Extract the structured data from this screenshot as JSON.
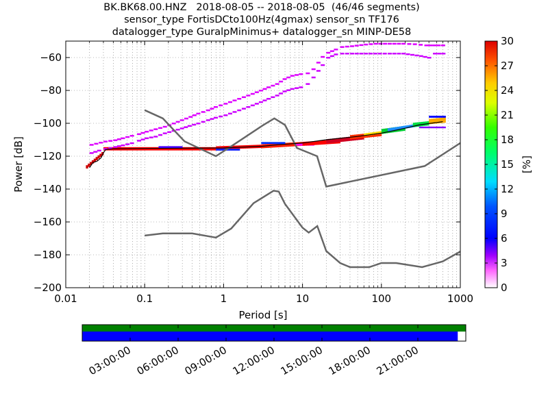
{
  "title": {
    "line1": "BK.BK68.00.HNZ   2018-08-05 -- 2018-08-05  (46/46 segments)",
    "line2": "sensor_type FortisDCto100Hz(4gmax) sensor_sn TF176",
    "line3": "datalogger_type GuralpMinimus+ datalogger_sn MINP-DE58"
  },
  "chart_data": {
    "type": "heatmap",
    "xlabel": "Period [s]",
    "ylabel": "Power [dB]",
    "x_scale": "log",
    "xlim": [
      0.01,
      1000
    ],
    "ylim": [
      -200,
      -50
    ],
    "x_ticks": [
      {
        "value": 0.01,
        "label": "0.01"
      },
      {
        "value": 0.1,
        "label": "0.1"
      },
      {
        "value": 1,
        "label": "1"
      },
      {
        "value": 10,
        "label": "10"
      },
      {
        "value": 100,
        "label": "100"
      },
      {
        "value": 1000,
        "label": "1000"
      }
    ],
    "y_ticks": [
      {
        "value": -60,
        "label": "−60"
      },
      {
        "value": -80,
        "label": "−80"
      },
      {
        "value": -100,
        "label": "−100"
      },
      {
        "value": -120,
        "label": "−120"
      },
      {
        "value": -140,
        "label": "−140"
      },
      {
        "value": -160,
        "label": "−160"
      },
      {
        "value": -180,
        "label": "−180"
      },
      {
        "value": -200,
        "label": "−200"
      }
    ],
    "grid": true,
    "colorbar": {
      "label": "[%]",
      "range": [
        0,
        30
      ],
      "ticks": [
        {
          "value": 0,
          "label": "0"
        },
        {
          "value": 3,
          "label": "3"
        },
        {
          "value": 6,
          "label": "6"
        },
        {
          "value": 9,
          "label": "9"
        },
        {
          "value": 12,
          "label": "12"
        },
        {
          "value": 15,
          "label": "15"
        },
        {
          "value": 18,
          "label": "18"
        },
        {
          "value": 21,
          "label": "21"
        },
        {
          "value": 24,
          "label": "24"
        },
        {
          "value": 27,
          "label": "27"
        },
        {
          "value": 30,
          "label": "30"
        }
      ]
    },
    "noise_models": [
      {
        "points": [
          [
            0.1,
            -92
          ],
          [
            0.17,
            -97
          ],
          [
            0.32,
            -111
          ],
          [
            0.8,
            -120
          ],
          [
            1.25,
            -114
          ],
          [
            3.2,
            -101
          ],
          [
            4.4,
            -97
          ],
          [
            6.0,
            -101
          ],
          [
            8.5,
            -115
          ],
          [
            15.3,
            -120
          ],
          [
            20,
            -138.5
          ],
          [
            354,
            -126
          ],
          [
            1000,
            -112
          ]
        ]
      },
      {
        "points": [
          [
            0.1,
            -168.3
          ],
          [
            0.17,
            -167
          ],
          [
            0.4,
            -167
          ],
          [
            0.8,
            -169.5
          ],
          [
            1.25,
            -164
          ],
          [
            2.4,
            -148.6
          ],
          [
            4.3,
            -141
          ],
          [
            5.0,
            -141.5
          ],
          [
            6.0,
            -149
          ],
          [
            10,
            -163.5
          ],
          [
            12,
            -166.5
          ],
          [
            15.4,
            -162.5
          ],
          [
            20,
            -177.7
          ],
          [
            30,
            -185
          ],
          [
            40,
            -187.5
          ],
          [
            70,
            -187.5
          ],
          [
            100,
            -185
          ],
          [
            154,
            -185
          ],
          [
            328,
            -187.5
          ],
          [
            600,
            -184
          ],
          [
            1000,
            -178
          ]
        ]
      }
    ],
    "mean_curve": [
      [
        0.02,
        -127
      ],
      [
        0.022,
        -124
      ],
      [
        0.025,
        -123
      ],
      [
        0.028,
        -121
      ],
      [
        0.03,
        -118
      ],
      [
        0.032,
        -116
      ],
      [
        0.04,
        -115.5
      ],
      [
        0.1,
        -115.3
      ],
      [
        1,
        -115
      ],
      [
        3,
        -114
      ],
      [
        5,
        -113
      ],
      [
        10,
        -112
      ],
      [
        20,
        -110
      ],
      [
        50,
        -108
      ],
      [
        100,
        -106
      ],
      [
        200,
        -103
      ],
      [
        300,
        -101
      ],
      [
        600,
        -99
      ]
    ],
    "pdf_bands": [
      {
        "from": 0.018,
        "to": 0.03,
        "center": [
          -127,
          -118
        ],
        "half": 1,
        "color": "#cc0000"
      },
      {
        "from": 0.03,
        "to": 0.8,
        "center": [
          -115.5,
          -115.5
        ],
        "half": 1,
        "color": "#ff0000"
      },
      {
        "from": 0.15,
        "to": 0.3,
        "center": [
          -114.5,
          -114.5
        ],
        "half": 0.6,
        "color": "#4b00ff"
      },
      {
        "from": 0.8,
        "to": 3,
        "center": [
          -115,
          -114
        ],
        "half": 1,
        "color": "#ff0000"
      },
      {
        "from": 0.8,
        "to": 1.6,
        "center": [
          -116,
          -116
        ],
        "half": 0.6,
        "color": "#1020ff"
      },
      {
        "from": 3,
        "to": 10,
        "center": [
          -114,
          -112.5
        ],
        "half": 1.2,
        "color": "#ff2000"
      },
      {
        "from": 3,
        "to": 6,
        "center": [
          -112,
          -112
        ],
        "half": 0.6,
        "color": "#0030ff"
      },
      {
        "from": 8,
        "to": 14,
        "center": [
          -113,
          -113
        ],
        "half": 0.6,
        "color": "#ff00ff"
      },
      {
        "from": 10,
        "to": 30,
        "center": [
          -112.5,
          -111
        ],
        "half": 1.2,
        "color": "#ff0000"
      },
      {
        "from": 20,
        "to": 60,
        "center": [
          -111,
          -108.5
        ],
        "half": 1.3,
        "color": "#d00020"
      },
      {
        "from": 40,
        "to": 100,
        "center": [
          -108.5,
          -106.5
        ],
        "half": 1.3,
        "color": "#ff3000"
      },
      {
        "from": 60,
        "to": 120,
        "center": [
          -107,
          -105
        ],
        "half": 0.8,
        "color": "#ffdd00"
      },
      {
        "from": 100,
        "to": 200,
        "center": [
          -105,
          -103
        ],
        "half": 1.5,
        "color": "#00cc33"
      },
      {
        "from": 120,
        "to": 300,
        "center": [
          -104,
          -101
        ],
        "half": 0.9,
        "color": "#1e90ff"
      },
      {
        "from": 250,
        "to": 400,
        "center": [
          -101,
          -100
        ],
        "half": 1.3,
        "color": "#00dd44"
      },
      {
        "from": 400,
        "to": 650,
        "center": [
          -99,
          -98
        ],
        "half": 1.6,
        "color": "#ffaa00"
      },
      {
        "from": 300,
        "to": 650,
        "center": [
          -102.5,
          -102.5
        ],
        "half": 0.5,
        "color": "#8000ff"
      },
      {
        "from": 400,
        "to": 650,
        "center": [
          -96,
          -96
        ],
        "half": 0.6,
        "color": "#0000ff"
      }
    ],
    "pdf_scatter_upper": [
      [
        0.02,
        -118
      ],
      [
        0.025,
        -116.5
      ],
      [
        0.03,
        -115.5
      ],
      [
        0.04,
        -114.3
      ],
      [
        0.05,
        -113.3
      ],
      [
        0.065,
        -112
      ],
      [
        0.08,
        -110.5
      ],
      [
        0.1,
        -109
      ],
      [
        0.13,
        -108
      ],
      [
        0.17,
        -106
      ],
      [
        0.22,
        -104.5
      ],
      [
        0.28,
        -103
      ],
      [
        0.35,
        -101.5
      ],
      [
        0.45,
        -100
      ],
      [
        0.6,
        -98
      ],
      [
        0.75,
        -96.5
      ],
      [
        1.0,
        -95
      ],
      [
        1.3,
        -93
      ],
      [
        1.7,
        -91
      ],
      [
        2.2,
        -89
      ],
      [
        2.8,
        -87
      ],
      [
        3.5,
        -85
      ],
      [
        4.5,
        -83
      ],
      [
        5.6,
        -80.5
      ],
      [
        7,
        -79
      ],
      [
        9,
        -78
      ],
      [
        11,
        -76
      ],
      [
        13,
        -72
      ],
      [
        15,
        -68
      ],
      [
        17,
        -64.5
      ],
      [
        20,
        -60
      ],
      [
        25,
        -58
      ],
      [
        30,
        -57.5
      ],
      [
        40,
        -57.5
      ],
      [
        60,
        -57.5
      ],
      [
        90,
        -57.5
      ],
      [
        120,
        -57.5
      ],
      [
        180,
        -57.5
      ],
      [
        300,
        -59
      ],
      [
        380,
        -60
      ],
      [
        450,
        -57.5
      ],
      [
        650,
        -57.5
      ]
    ],
    "pdf_scatter_outer": [
      [
        0.02,
        -113
      ],
      [
        0.03,
        -111
      ],
      [
        0.04,
        -110.2
      ],
      [
        0.05,
        -109
      ],
      [
        0.065,
        -107.5
      ],
      [
        0.08,
        -106.5
      ],
      [
        0.1,
        -105
      ],
      [
        0.13,
        -103.5
      ],
      [
        0.17,
        -102
      ],
      [
        0.22,
        -100
      ],
      [
        0.28,
        -98
      ],
      [
        0.36,
        -96
      ],
      [
        0.45,
        -94
      ],
      [
        0.6,
        -92
      ],
      [
        0.75,
        -90
      ],
      [
        1.0,
        -88
      ],
      [
        1.3,
        -86
      ],
      [
        1.7,
        -84
      ],
      [
        2.2,
        -82
      ],
      [
        2.8,
        -80
      ],
      [
        3.5,
        -78
      ],
      [
        4.5,
        -76
      ],
      [
        5.6,
        -73
      ],
      [
        7,
        -71
      ],
      [
        9,
        -70
      ],
      [
        11,
        -69.5
      ],
      [
        13,
        -67
      ],
      [
        15,
        -63
      ],
      [
        17,
        -59.5
      ],
      [
        20,
        -57
      ],
      [
        25,
        -55
      ],
      [
        30,
        -53.5
      ],
      [
        40,
        -53
      ],
      [
        60,
        -52
      ],
      [
        80,
        -51.5
      ],
      [
        120,
        -51.5
      ],
      [
        180,
        -51.5
      ],
      [
        250,
        -51.8
      ],
      [
        350,
        -52.5
      ],
      [
        500,
        -52.5
      ],
      [
        650,
        -52.5
      ]
    ]
  },
  "timeline": {
    "tick_labels": [
      "03:00:00",
      "06:00:00",
      "09:00:00",
      "12:00:00",
      "15:00:00",
      "18:00:00",
      "21:00:00"
    ],
    "tick_hours": [
      3,
      6,
      9,
      12,
      15,
      18,
      21
    ],
    "total_hours": 24,
    "data_coverage_fraction": 1.0,
    "segments_coverage_fraction": 0.979,
    "colors": {
      "data": "#008000",
      "segments": "#0000ff"
    }
  }
}
